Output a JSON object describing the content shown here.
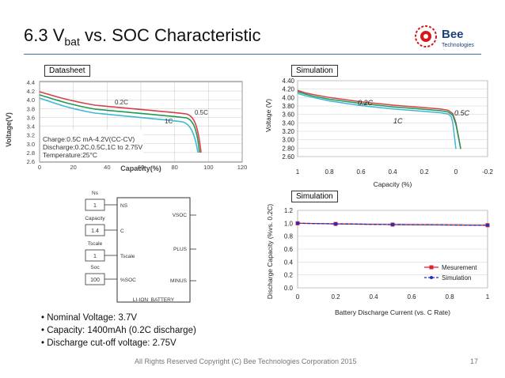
{
  "slide": {
    "title_main": "6.3 V",
    "title_sub": "bat",
    "title_rest": " vs. SOC Characteristic",
    "footer": "All Rights Reserved Copyright (C) Bee Technologies Corporation 2015",
    "page_number": "17",
    "logo_text": "Bee",
    "logo_subtext": "Technologies",
    "accent_color": "#3f6fb5",
    "logo_color": "#d7191c"
  },
  "bullets": [
    "Nominal Voltage: 3.7V",
    "Capacity: 1400mAh (0.2C discharge)",
    "Discharge cut-off voltage: 2.75V"
  ],
  "datasheet": {
    "label": "Datasheet",
    "ylabel": "Voltage(V)",
    "xlabel": "Capacity(%)",
    "yticks": [
      "4.4",
      "4.2",
      "4.0",
      "3.8",
      "3.6",
      "3.4",
      "3.2",
      "3.0",
      "2.8",
      "2.6"
    ],
    "xticks": [
      "0",
      "20",
      "40",
      "60",
      "80",
      "100",
      "120"
    ],
    "curve_labels": [
      "0.2C",
      "0.5C",
      "1C"
    ],
    "legend_lines": [
      "Charge:0.5C mA-4.2V(CC-CV)",
      "Discharge:0.2C,0.5C,1C to 2.75V",
      "Temperature:25°C"
    ]
  },
  "schematic": {
    "params": [
      {
        "label": "Ns",
        "value": "1",
        "pin": "NS"
      },
      {
        "label": "Capacity",
        "value": "1.4",
        "pin": "C"
      },
      {
        "label": "Tscale",
        "value": "1",
        "pin": "Tscale"
      },
      {
        "label": "Soc",
        "value": "100",
        "pin": "%SOC"
      }
    ],
    "right_pins": [
      "VSOC",
      "PLUS",
      "MINUS"
    ],
    "block_name": "LI-ION_BATTERY"
  },
  "chart_data": [
    {
      "type": "line",
      "label": "Simulation",
      "ylabel": "Voltage (V)",
      "xlabel": "Capacity (%)",
      "ylim": [
        2.6,
        4.4
      ],
      "xlim": [
        1,
        -0.2
      ],
      "yticks": [
        "4.40",
        "4.20",
        "4.00",
        "3.80",
        "3.60",
        "3.40",
        "3.20",
        "3.00",
        "2.80",
        "2.60"
      ],
      "xticks": [
        "1",
        "0.8",
        "0.6",
        "0.4",
        "0.2",
        "0",
        "-0.2"
      ],
      "curve_labels": [
        "0.2C",
        "0.5C",
        "1C"
      ],
      "series": [
        {
          "name": "0.2C",
          "color": "#d6404a",
          "x": [
            1,
            0.95,
            0.9,
            0.8,
            0.6,
            0.4,
            0.2,
            0.1,
            0.05,
            0.02,
            0.0,
            -0.02,
            -0.03
          ],
          "y": [
            4.17,
            4.11,
            4.07,
            4.0,
            3.9,
            3.82,
            3.76,
            3.73,
            3.7,
            3.62,
            3.4,
            3.0,
            2.78
          ]
        },
        {
          "name": "0.5C",
          "color": "#1e9a55",
          "x": [
            1,
            0.95,
            0.9,
            0.8,
            0.6,
            0.4,
            0.2,
            0.1,
            0.05,
            0.02,
            0.0,
            -0.02,
            -0.03
          ],
          "y": [
            4.14,
            4.08,
            4.03,
            3.96,
            3.86,
            3.78,
            3.72,
            3.69,
            3.66,
            3.58,
            3.36,
            2.98,
            2.78
          ]
        },
        {
          "name": "1C",
          "color": "#3fb7d8",
          "x": [
            1,
            0.95,
            0.9,
            0.8,
            0.6,
            0.4,
            0.2,
            0.1,
            0.05,
            0.03,
            0.02,
            0.01,
            0.0
          ],
          "y": [
            4.1,
            4.04,
            4.0,
            3.92,
            3.81,
            3.73,
            3.67,
            3.64,
            3.61,
            3.55,
            3.4,
            3.1,
            2.78
          ]
        }
      ]
    },
    {
      "type": "line",
      "label": "Simulation",
      "ylabel": "Discharge Capacity (%vs. 0.2C)",
      "xlabel": "Battery Discharge Current (vs. C Rate)",
      "ylim": [
        0,
        1.2
      ],
      "xlim": [
        0,
        1
      ],
      "yticks": [
        "1.2",
        "1.0",
        "0.8",
        "0.6",
        "0.4",
        "0.2",
        "0.0"
      ],
      "xticks": [
        "0",
        "0.2",
        "0.4",
        "0.6",
        "0.8",
        "1"
      ],
      "legend": "bottom-right",
      "series": [
        {
          "name": "Mesurement",
          "color": "#e0202a",
          "x": [
            0,
            0.2,
            0.5,
            1
          ],
          "y": [
            1.0,
            0.99,
            0.98,
            0.97
          ]
        },
        {
          "name": "Simulation",
          "color": "#1f2fbf",
          "x": [
            0,
            0.2,
            0.5,
            1
          ],
          "y": [
            1.0,
            0.99,
            0.98,
            0.97
          ]
        }
      ]
    }
  ]
}
